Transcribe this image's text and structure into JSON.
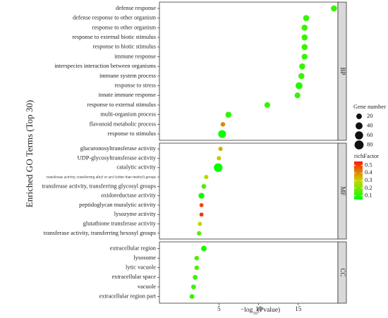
{
  "chart_data": {
    "type": "scatter",
    "ylabel": "Enriched GO Terms (Top 30)",
    "xlabel": "-log10(Pvalue)",
    "xticks": [
      5,
      10,
      15
    ],
    "xlim": [
      -2.5,
      20
    ],
    "grid": false,
    "legend_position": "right",
    "size_legend": {
      "title": "Gene number",
      "values": [
        20,
        40,
        60,
        80
      ]
    },
    "color_legend": {
      "title": "richFactor",
      "values": [
        0.5,
        0.4,
        0.3,
        0.2,
        0.1
      ],
      "range": [
        0.05,
        0.55
      ]
    },
    "facets": [
      {
        "name": "BP",
        "terms": [
          {
            "term": "defense response",
            "x": 19.5,
            "gene_number": 26,
            "rich_factor": 0.12
          },
          {
            "term": "defense response to other organism",
            "x": 16.0,
            "gene_number": 26,
            "rich_factor": 0.12
          },
          {
            "term": "response to other organism",
            "x": 15.8,
            "gene_number": 26,
            "rich_factor": 0.12
          },
          {
            "term": "response to external biotic stimulus",
            "x": 15.8,
            "gene_number": 26,
            "rich_factor": 0.12
          },
          {
            "term": "response to biotic stimulus",
            "x": 15.8,
            "gene_number": 26,
            "rich_factor": 0.12
          },
          {
            "term": "immune response",
            "x": 15.8,
            "gene_number": 24,
            "rich_factor": 0.12
          },
          {
            "term": "interspecies interaction between organisms",
            "x": 15.5,
            "gene_number": 26,
            "rich_factor": 0.12
          },
          {
            "term": "immune system process",
            "x": 15.4,
            "gene_number": 26,
            "rich_factor": 0.12
          },
          {
            "term": "response to stress",
            "x": 15.1,
            "gene_number": 40,
            "rich_factor": 0.1
          },
          {
            "term": "innate immune response",
            "x": 14.9,
            "gene_number": 22,
            "rich_factor": 0.12
          },
          {
            "term": "response to external stimulus",
            "x": 11.1,
            "gene_number": 22,
            "rich_factor": 0.12
          },
          {
            "term": "multi-organism process",
            "x": 6.2,
            "gene_number": 26,
            "rich_factor": 0.12
          },
          {
            "term": "flavonoid metabolic process",
            "x": 5.5,
            "gene_number": 10,
            "rich_factor": 0.4
          },
          {
            "term": "response to stimulus",
            "x": 5.4,
            "gene_number": 55,
            "rich_factor": 0.07
          }
        ]
      },
      {
        "name": "MF",
        "terms": [
          {
            "term": "glucuronosyltransferase activity",
            "x": 5.2,
            "gene_number": 8,
            "rich_factor": 0.35
          },
          {
            "term": "UDP-glycosyltransferase activity",
            "x": 5.0,
            "gene_number": 8,
            "rich_factor": 0.32
          },
          {
            "term": "catalytic activity",
            "x": 4.9,
            "gene_number": 70,
            "rich_factor": 0.06
          },
          {
            "term": "transferase activity, transferring alkyl or aryl (other than methyl) groups",
            "x": 3.4,
            "gene_number": 8,
            "rich_factor": 0.28
          },
          {
            "term": "transferase activity, transferring glycosyl groups",
            "x": 3.1,
            "gene_number": 12,
            "rich_factor": 0.15
          },
          {
            "term": "oxidoreductase activity",
            "x": 2.8,
            "gene_number": 24,
            "rich_factor": 0.08
          },
          {
            "term": "peptidoglycan muralytic activity",
            "x": 2.8,
            "gene_number": 6,
            "rich_factor": 0.5
          },
          {
            "term": "lysozyme activity",
            "x": 2.8,
            "gene_number": 6,
            "rich_factor": 0.52
          },
          {
            "term": "glutathione transferase activity",
            "x": 2.6,
            "gene_number": 8,
            "rich_factor": 0.3
          },
          {
            "term": "transferase activity, transferring hexosyl groups",
            "x": 2.5,
            "gene_number": 9,
            "rich_factor": 0.16
          }
        ]
      },
      {
        "name": "CC",
        "terms": [
          {
            "term": "extracellular region",
            "x": 3.1,
            "gene_number": 20,
            "rich_factor": 0.08
          },
          {
            "term": "lysosome",
            "x": 2.2,
            "gene_number": 10,
            "rich_factor": 0.15
          },
          {
            "term": "lytic vacuole",
            "x": 2.2,
            "gene_number": 10,
            "rich_factor": 0.15
          },
          {
            "term": "extracellular space",
            "x": 2.0,
            "gene_number": 12,
            "rich_factor": 0.12
          },
          {
            "term": "vacuole",
            "x": 1.8,
            "gene_number": 12,
            "rich_factor": 0.12
          },
          {
            "term": "extracellular region part",
            "x": 1.6,
            "gene_number": 12,
            "rich_factor": 0.12
          }
        ]
      }
    ]
  }
}
